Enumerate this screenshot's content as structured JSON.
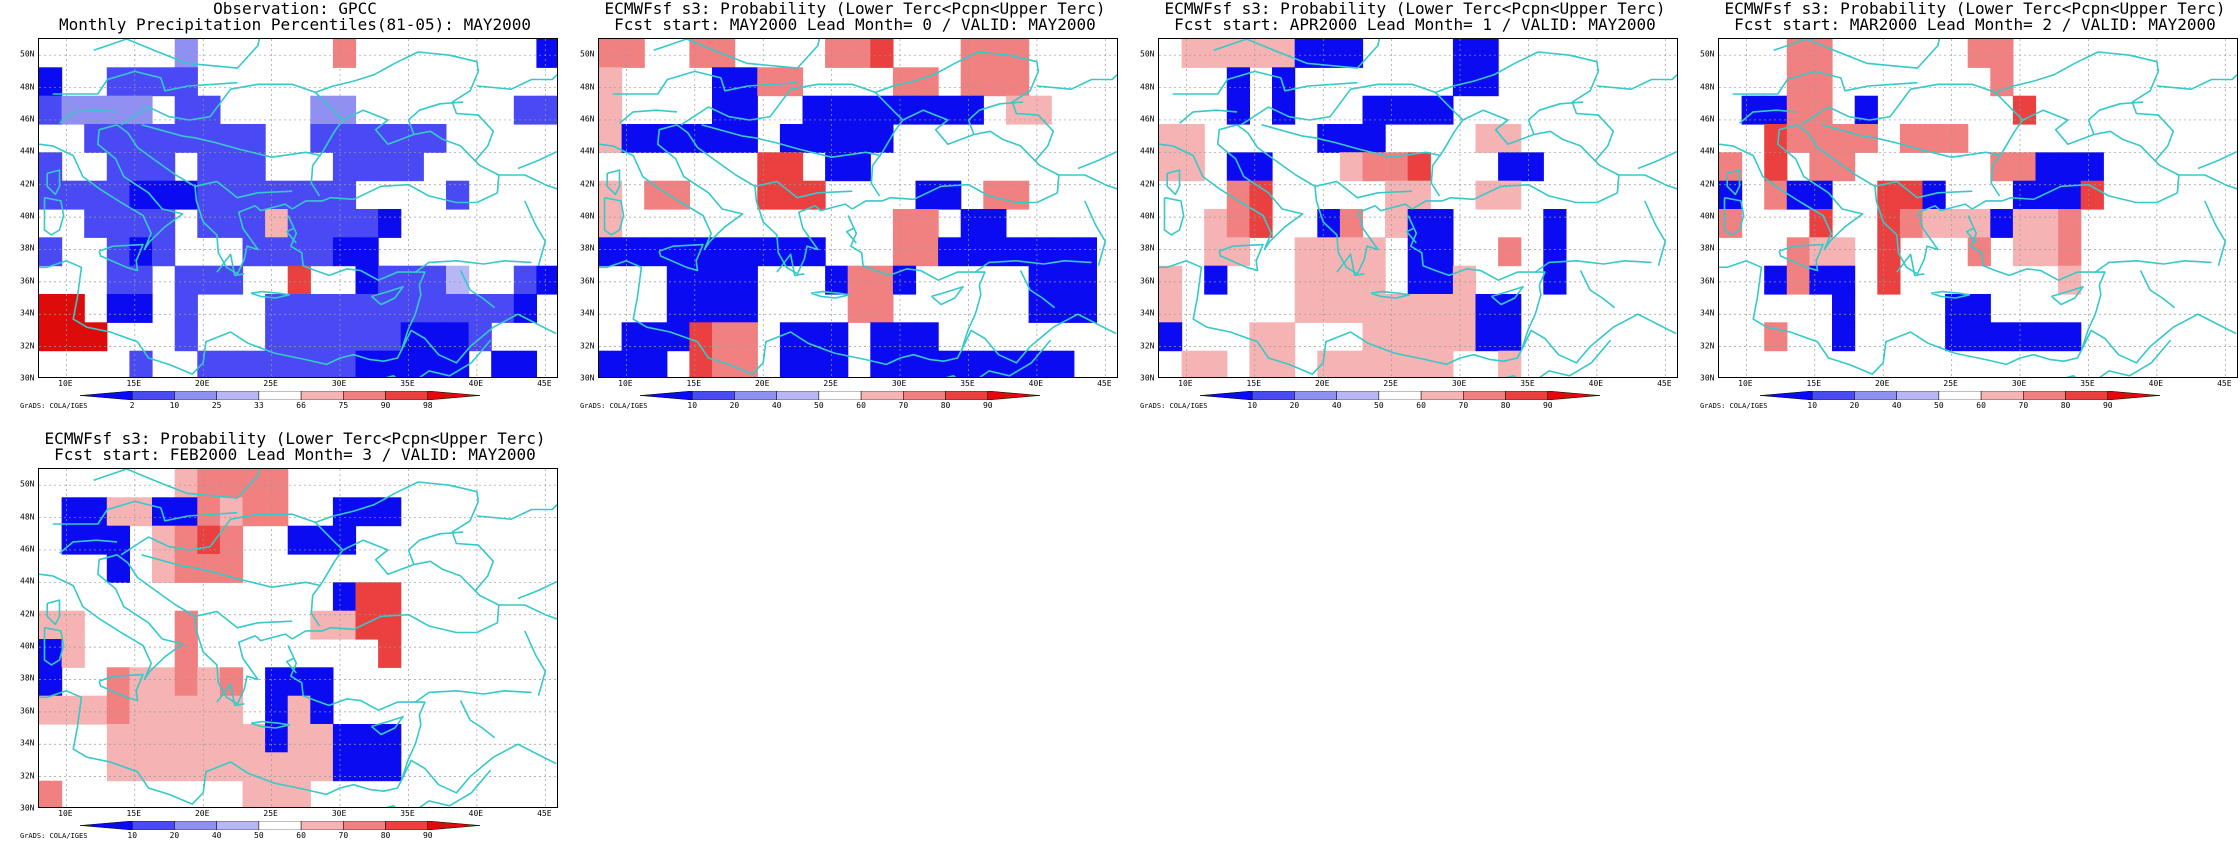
{
  "credit": "GrADS: COLA/IGES",
  "colors": {
    "coast": "#36c9c9",
    "grid": "#9a9a9a",
    "scale": [
      "#0b0bf2",
      "#4a4af4",
      "#9090f3",
      "#b7b7f6",
      "#ffffff",
      "#f6b3b3",
      "#f18080",
      "#ea4040",
      "#de0b0b"
    ]
  },
  "axes": {
    "lon_labels": [
      "10E",
      "15E",
      "20E",
      "25E",
      "30E",
      "35E",
      "40E",
      "45E"
    ],
    "lat_labels": [
      "30N",
      "32N",
      "34N",
      "36N",
      "38N",
      "40N",
      "42N",
      "44N",
      "46N",
      "48N",
      "50N"
    ],
    "lon_range": [
      8,
      46
    ],
    "lat_range": [
      30,
      51
    ]
  },
  "panels": [
    {
      "title": "Observation: GPCC",
      "subtitle": "Monthly Precipitation Percentiles(81-05): MAY2000",
      "colorbar": [
        "2",
        "10",
        "25",
        "33",
        "66",
        "75",
        "90",
        "98"
      ],
      "grid_values": [
        "..... e.. .. j........c",
        "a..bbbb..... ..........",
        "kllll.bb....ll.......bb",
        "..bbbbbbbb..bbbbbb.....",
        "k..bbb.bbb...bbbb......",
        "kkkbcccbbbbbbb....b....",
        "..bbbb.bbbfbbbbc.......",
        "k..bcb...bbbbaa........",
        "...bb.bbb..g..abbbd..bc",
        "oo.cc.b...bbbbbbbbbbbc.",
        "ooo...b...bbbbbbaaab...",
        "....k..bbbbbbbaaaaa.ca."
      ]
    },
    {
      "title": "ECMWFsf s3: Probability (Lower Terc<Pcpn<Upper Terc)",
      "subtitle": "Fcst start: MAY2000   Lead Month= 0 / VALID: MAY2000",
      "colorbar": [
        "10",
        "20",
        "40",
        "50",
        "60",
        "70",
        "80",
        "90"
      ],
      "grid_values": [],
      "patches": [
        {
          "v": "f",
          "c": [
            [
              0,
              0,
              2,
              1
            ],
            [
              4,
              0,
              2,
              1
            ],
            [
              10,
              0,
              2,
              1
            ],
            [
              16,
              0,
              3,
              2
            ],
            [
              7,
              1,
              2,
              1
            ],
            [
              13,
              1,
              2,
              1
            ]
          ]
        },
        {
          "v": "g",
          "c": [
            [
              12,
              0,
              1,
              1
            ]
          ]
        },
        {
          "v": "a",
          "c": [
            [
              5,
              1,
              2,
              2
            ],
            [
              9,
              2,
              8,
              1
            ],
            [
              1,
              3,
              6,
              1
            ],
            [
              8,
              3,
              5,
              1
            ],
            [
              10,
              4,
              2,
              1
            ],
            [
              14,
              5,
              2,
              1
            ],
            [
              16,
              6,
              2,
              2
            ],
            [
              0,
              7,
              7,
              1
            ],
            [
              7,
              7,
              3,
              1
            ],
            [
              13,
              7,
              9,
              1
            ],
            [
              3,
              8,
              4,
              2
            ],
            [
              10,
              8,
              4,
              1
            ],
            [
              19,
              8,
              3,
              2
            ],
            [
              1,
              10,
              4,
              1
            ],
            [
              12,
              10,
              3,
              1
            ],
            [
              0,
              11,
              3,
              1
            ],
            [
              12,
              11,
              9,
              1
            ],
            [
              8,
              10,
              3,
              2
            ]
          ]
        },
        {
          "v": "g",
          "c": [
            [
              7,
              4,
              2,
              2
            ],
            [
              8,
              5,
              2,
              1
            ],
            [
              4,
              10,
              2,
              2
            ]
          ]
        },
        {
          "v": "f",
          "c": [
            [
              2,
              5,
              2,
              1
            ],
            [
              13,
              6,
              2,
              2
            ],
            [
              11,
              8,
              2,
              2
            ],
            [
              17,
              5,
              2,
              1
            ],
            [
              5,
              10,
              2,
              2
            ]
          ]
        },
        {
          "v": "e",
          "c": [
            [
              0,
              1,
              1,
              3
            ],
            [
              18,
              2,
              2,
              1
            ],
            [
              0,
              5,
              1,
              2
            ]
          ]
        }
      ]
    },
    {
      "title": "ECMWFsf s3: Probability (Lower Terc<Pcpn<Upper Terc)",
      "subtitle": "Fcst start: APR2000   Lead Month= 1 / VALID: MAY2000",
      "colorbar": [
        "10",
        "20",
        "40",
        "50",
        "60",
        "70",
        "80",
        "90"
      ],
      "grid_values": [],
      "patches": [
        {
          "v": "e",
          "c": [
            [
              1,
              0,
              6,
              1
            ],
            [
              0,
              3,
              2,
              2
            ],
            [
              14,
              3,
              2,
              1
            ],
            [
              8,
              4,
              3,
              1
            ],
            [
              14,
              5,
              2,
              1
            ],
            [
              10,
              5,
              2,
              2
            ],
            [
              2,
              6,
              2,
              2
            ],
            [
              0,
              8,
              1,
              2
            ],
            [
              6,
              7,
              4,
              3
            ],
            [
              12,
              8,
              2,
              2
            ],
            [
              9,
              9,
              6,
              2
            ],
            [
              15,
              10,
              1,
              2
            ],
            [
              4,
              10,
              2,
              2
            ],
            [
              1,
              11,
              2,
              1
            ],
            [
              7,
              11,
              6,
              1
            ]
          ]
        },
        {
          "v": "a",
          "c": [
            [
              6,
              0,
              3,
              1
            ],
            [
              13,
              0,
              2,
              2
            ],
            [
              3,
              1,
              1,
              2
            ],
            [
              5,
              1,
              1,
              2
            ],
            [
              7,
              3,
              3,
              1
            ],
            [
              3,
              4,
              2,
              1
            ],
            [
              9,
              2,
              4,
              1
            ],
            [
              7,
              6,
              2,
              1
            ],
            [
              11,
              6,
              2,
              2
            ],
            [
              15,
              4,
              2,
              1
            ],
            [
              11,
              8,
              2,
              1
            ],
            [
              2,
              8,
              1,
              1
            ],
            [
              0,
              10,
              1,
              1
            ],
            [
              17,
              6,
              1,
              3
            ],
            [
              14,
              9,
              2,
              2
            ]
          ]
        },
        {
          "v": "f",
          "c": [
            [
              9,
              4,
              2,
              1
            ],
            [
              3,
              5,
              2,
              2
            ],
            [
              8,
              6,
              1,
              1
            ],
            [
              15,
              7,
              1,
              1
            ]
          ]
        },
        {
          "v": "g",
          "c": [
            [
              11,
              4,
              1,
              1
            ],
            [
              4,
              5,
              1,
              2
            ]
          ]
        }
      ]
    },
    {
      "title": "ECMWFsf s3: Probability (Lower Terc<Pcpn<Upper Terc)",
      "subtitle": "Fcst start: MAR2000   Lead Month= 2 / VALID: MAY2000",
      "colorbar": [
        "10",
        "20",
        "40",
        "50",
        "60",
        "70",
        "80",
        "90"
      ],
      "grid_values": [],
      "patches": [
        {
          "v": "f",
          "c": [
            [
              3,
              0,
              2,
              2
            ],
            [
              11,
              0,
              1,
              1
            ],
            [
              12,
              0,
              1,
              2
            ],
            [
              2,
              2,
              3,
              2
            ],
            [
              8,
              3,
              3,
              1
            ],
            [
              5,
              3,
              2,
              1
            ],
            [
              12,
              4,
              4,
              1
            ],
            [
              0,
              4,
              1,
              1
            ],
            [
              4,
              4,
              2,
              1
            ],
            [
              2,
              5,
              2,
              1
            ],
            [
              7,
              6,
              3,
              1
            ],
            [
              13,
              6,
              3,
              2
            ],
            [
              11,
              7,
              1,
              1
            ],
            [
              3,
              7,
              3,
              2
            ],
            [
              2,
              10,
              1,
              1
            ],
            [
              0,
              5,
              1,
              2
            ]
          ]
        },
        {
          "v": "g",
          "c": [
            [
              2,
              2,
              1,
              3
            ],
            [
              13,
              2,
              1,
              1
            ],
            [
              4,
              6,
              1,
              1
            ],
            [
              7,
              5,
              2,
              1
            ],
            [
              7,
              6,
              1,
              3
            ],
            [
              16,
              5,
              1,
              1
            ]
          ]
        },
        {
          "v": "a",
          "c": [
            [
              1,
              2,
              2,
              1
            ],
            [
              0,
              5,
              1,
              1
            ],
            [
              6,
              2,
              1,
              1
            ],
            [
              3,
              5,
              2,
              1
            ],
            [
              13,
              5,
              3,
              1
            ],
            [
              14,
              4,
              3,
              1
            ],
            [
              9,
              5,
              1,
              1
            ],
            [
              11,
              6,
              2,
              1
            ],
            [
              2,
              8,
              1,
              1
            ],
            [
              4,
              8,
              2,
              1
            ],
            [
              10,
              9,
              2,
              2
            ],
            [
              5,
              9,
              1,
              2
            ],
            [
              12,
              10,
              2,
              1
            ],
            [
              14,
              10,
              2,
              1
            ]
          ]
        },
        {
          "v": "e",
          "c": [
            [
              9,
              6,
              3,
              1
            ],
            [
              13,
              6,
              2,
              2
            ],
            [
              15,
              8,
              1,
              1
            ],
            [
              4,
              7,
              2,
              1
            ]
          ]
        }
      ]
    },
    {
      "title": "ECMWFsf s3: Probability (Lower Terc<Pcpn<Upper Terc)",
      "subtitle": "Fcst start: FEB2000   Lead Month= 3 / VALID: MAY2000",
      "colorbar": [
        "10",
        "20",
        "40",
        "50",
        "60",
        "70",
        "80",
        "90"
      ],
      "grid_values": [],
      "patches": [
        {
          "v": "e",
          "c": [
            [
              6,
              0,
              4,
              2
            ],
            [
              1,
              1,
              2,
              2
            ],
            [
              3,
              1,
              3,
              1
            ],
            [
              5,
              2,
              3,
              2
            ],
            [
              0,
              5,
              2,
              2
            ],
            [
              12,
              5,
              2,
              1
            ],
            [
              0,
              8,
              3,
              1
            ],
            [
              4,
              7,
              5,
              4
            ],
            [
              3,
              9,
              3,
              2
            ],
            [
              9,
              9,
              3,
              3
            ],
            [
              7,
              10,
              6,
              1
            ],
            [
              11,
              8,
              2,
              3
            ],
            [
              0,
              11,
              1,
              1
            ]
          ]
        },
        {
          "v": "f",
          "c": [
            [
              7,
              0,
              2,
              1
            ],
            [
              9,
              0,
              2,
              2
            ],
            [
              6,
              1,
              2,
              1
            ],
            [
              6,
              2,
              3,
              2
            ],
            [
              6,
              5,
              1,
              2
            ],
            [
              3,
              7,
              1,
              2
            ],
            [
              6,
              6,
              1,
              2
            ],
            [
              8,
              7,
              1,
              1
            ],
            [
              0,
              11,
              1,
              1
            ]
          ]
        },
        {
          "v": "g",
          "c": [
            [
              7,
              2,
              1,
              1
            ],
            [
              14,
              4,
              2,
              1
            ],
            [
              14,
              5,
              2,
              1
            ],
            [
              15,
              6,
              1,
              1
            ]
          ]
        },
        {
          "v": "a",
          "c": [
            [
              1,
              1,
              2,
              2
            ],
            [
              5,
              1,
              2,
              1
            ],
            [
              13,
              1,
              3,
              1
            ],
            [
              11,
              2,
              3,
              1
            ],
            [
              3,
              2,
              1,
              2
            ],
            [
              13,
              4,
              1,
              1
            ],
            [
              0,
              6,
              1,
              2
            ],
            [
              10,
              7,
              3,
              1
            ],
            [
              10,
              8,
              1,
              2
            ],
            [
              12,
              8,
              1,
              1
            ],
            [
              13,
              9,
              3,
              2
            ]
          ]
        }
      ]
    }
  ]
}
